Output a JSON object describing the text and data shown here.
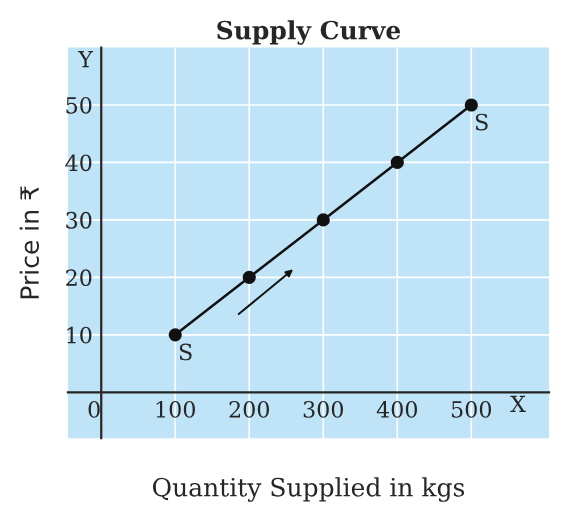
{
  "chart_data": {
    "type": "line",
    "title": "Supply Curve",
    "xlabel": "Quantity Supplied in kgs",
    "ylabel": "Price in ₹",
    "x": [
      100,
      200,
      300,
      400,
      500
    ],
    "series": [
      {
        "color": "#111111",
        "values": [
          10,
          20,
          30,
          40,
          50
        ]
      }
    ],
    "marker": "circle",
    "line_style": "solid",
    "grid": true,
    "xlim": [
      -45,
      605
    ],
    "ylim": [
      -8,
      60
    ],
    "xticks": [
      0,
      100,
      200,
      300,
      400,
      500
    ],
    "yticks": [
      10,
      20,
      30,
      40,
      50
    ],
    "annotations": [
      {
        "text": "S",
        "x": 100,
        "y": 10
      },
      {
        "text": "S",
        "x": 500,
        "y": 50
      },
      "Y",
      "X"
    ]
  }
}
